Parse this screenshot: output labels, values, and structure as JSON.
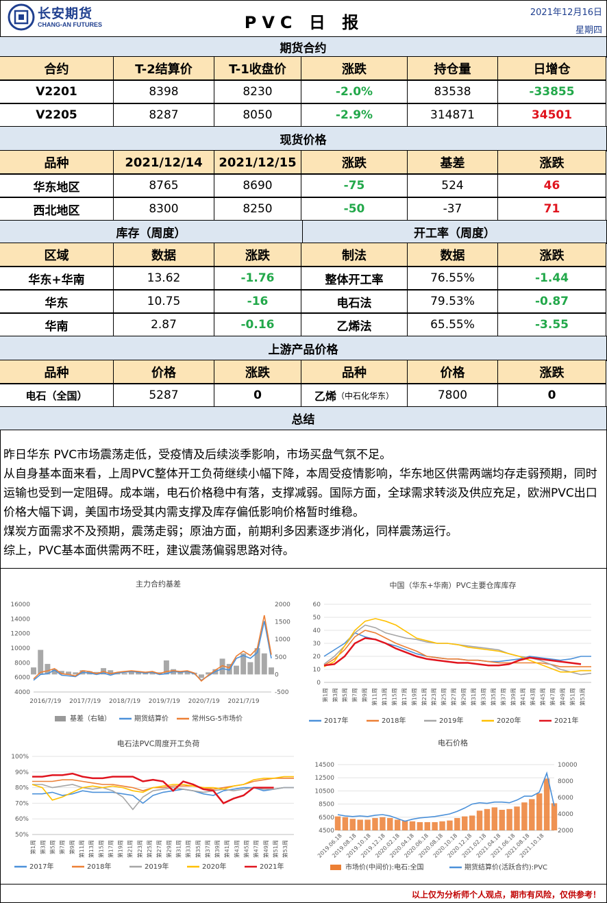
{
  "header": {
    "brand_cn": "长安期货",
    "brand_en": "CHANG-AN FUTURES",
    "title": "PVC 日 报",
    "date": "2021年12月16日",
    "weekday": "星期四"
  },
  "futures": {
    "section": "期货合约",
    "columns": [
      "合约",
      "T-2结算价",
      "T-1收盘价",
      "涨跌",
      "持仓量",
      "日增仓"
    ],
    "rows": [
      [
        "V2201",
        "8398",
        "8230",
        "-2.0%",
        "83538",
        "-33855"
      ],
      [
        "V2205",
        "8287",
        "8050",
        "-2.9%",
        "314871",
        "34501"
      ]
    ]
  },
  "spot": {
    "section": "现货价格",
    "columns": [
      "品种",
      "2021/12/14",
      "2021/12/15",
      "涨跌",
      "基差",
      "涨跌"
    ],
    "rows": [
      [
        "华东地区",
        "8765",
        "8690",
        "-75",
        "524",
        "46"
      ],
      [
        "西北地区",
        "8300",
        "8250",
        "-50",
        "-37",
        "71"
      ]
    ]
  },
  "inventory": {
    "section": "库存（周度）",
    "columns": [
      "区域",
      "数据",
      "涨跌"
    ],
    "rows": [
      [
        "华东+华南",
        "13.62",
        "-1.76"
      ],
      [
        "华东",
        "10.75",
        "-16"
      ],
      [
        "华南",
        "2.87",
        "-0.16"
      ]
    ]
  },
  "operating": {
    "section": "开工率（周度）",
    "columns": [
      "制法",
      "数据",
      "涨跌"
    ],
    "rows": [
      [
        "整体开工率",
        "76.55%",
        "-1.44"
      ],
      [
        "电石法",
        "79.53%",
        "-0.87"
      ],
      [
        "乙烯法",
        "65.55%",
        "-3.55"
      ]
    ]
  },
  "upstream": {
    "section": "上游产品价格",
    "columns": [
      "品种",
      "价格",
      "涨跌",
      "品种",
      "价格",
      "涨跌"
    ],
    "row": {
      "name1": "电石（全国）",
      "price1": "5287",
      "chg1": "0",
      "name2": "乙烯",
      "name2_note": "（中石化华东）",
      "price2": "7800",
      "chg2": "0"
    }
  },
  "summary": {
    "section": "总结",
    "paragraphs": [
      "昨日华东 PVC市场震荡走低，受疫情及后续淡季影响，市场买盘气氛不足。",
      "从自身基本面来看，上周PVC整体开工负荷继续小幅下降，本周受疫情影响，华东地区供需两端均存走弱预期，同时运输也受到一定阻碍。成本端，电石价格稳中有落，支撑减弱。国际方面，全球需求转淡及供应充足，欧洲PVC出口价格大幅下调，美国市场受其内需支撑及库存偏低影响价格暂时维稳。",
      "煤炭方面需求不及预期，震荡走弱；原油方面，前期利多因素逐步消化，同样震荡运行。",
      "综上，PVC基本面供需两不旺，建议震荡偏弱思路对待。"
    ]
  },
  "footer": {
    "disclaimer": "以上仅为分析师个人观点，期市有风险，仅供参考！"
  },
  "chart_data": [
    {
      "type": "line",
      "title": "主力合约基差",
      "x_ticks": [
        "2016/7/19",
        "2017/7/19",
        "2018/7/19",
        "2019/7/19",
        "2020/7/19",
        "2021/7/19"
      ],
      "ylim": [
        4000,
        16000
      ],
      "y_ticks": [
        "4000",
        "6000",
        "8000",
        "10000",
        "12000",
        "14000",
        "16000"
      ],
      "ylim_right": [
        -500,
        2000
      ],
      "y_ticks_right": [
        "-500",
        "0",
        "500",
        "1000",
        "1500",
        "2000"
      ],
      "series": [
        {
          "name": "基差（右轴）",
          "color": "#999999",
          "kind": "area",
          "values": [
            200,
            700,
            300,
            150,
            100,
            80,
            60,
            120,
            90,
            70,
            180,
            120,
            60,
            40,
            100,
            80,
            70,
            50,
            60,
            400,
            150,
            60,
            80,
            50,
            -100,
            60,
            150,
            450,
            300,
            250,
            600,
            350,
            750,
            600,
            200
          ]
        },
        {
          "name": "期货结算价",
          "color": "#4a90d9",
          "values": [
            5600,
            6400,
            6500,
            7000,
            6300,
            6200,
            6100,
            6700,
            6600,
            6400,
            6600,
            6300,
            6600,
            6700,
            6800,
            6700,
            6600,
            6700,
            6400,
            6500,
            6800,
            6700,
            6800,
            6500,
            5600,
            6200,
            6800,
            7200,
            7000,
            8600,
            9000,
            8600,
            9400,
            13700,
            8600
          ]
        },
        {
          "name": "常州SG-5市场价",
          "color": "#ec7f34",
          "values": [
            5800,
            6700,
            6900,
            7200,
            6500,
            6400,
            6200,
            6900,
            6800,
            6500,
            6800,
            6500,
            6700,
            6800,
            6900,
            6800,
            6700,
            6800,
            6500,
            6800,
            6900,
            6800,
            6900,
            6600,
            5500,
            6300,
            7000,
            7600,
            7300,
            8900,
            9600,
            9000,
            10000,
            14500,
            9100
          ]
        }
      ]
    },
    {
      "type": "line",
      "title": "中国（华东+华南）PVC主要仓库库存",
      "x_ticks": [
        "第1周",
        "第3周",
        "第5周",
        "第7周",
        "第9周",
        "第11周",
        "第13周",
        "第15周",
        "第17周",
        "第19周",
        "第21周",
        "第23周",
        "第25周",
        "第27周",
        "第29周",
        "第31周",
        "第33周",
        "第35周",
        "第37周",
        "第39周",
        "第41周",
        "第43周",
        "第45周",
        "第47周",
        "第49周",
        "第51周",
        "第53周"
      ],
      "ylim": [
        0,
        60
      ],
      "y_ticks": [
        "0",
        "10",
        "20",
        "30",
        "40",
        "50",
        "60"
      ],
      "series": [
        {
          "name": "2017年",
          "color": "#4a90d9",
          "values": [
            20,
            25,
            30,
            38,
            35,
            33,
            30,
            28,
            25,
            22,
            20,
            19,
            18,
            18,
            17,
            17,
            16,
            16,
            17,
            18,
            20,
            19,
            18,
            17,
            18,
            20,
            20
          ]
        },
        {
          "name": "2018年",
          "color": "#ec7f34",
          "values": [
            13,
            18,
            25,
            35,
            40,
            38,
            34,
            30,
            27,
            24,
            20,
            19,
            18,
            18,
            17,
            17,
            16,
            15,
            15,
            15,
            15,
            15,
            14,
            12,
            12,
            12,
            12
          ]
        },
        {
          "name": "2019年",
          "color": "#a5a5a5",
          "values": [
            14,
            20,
            28,
            38,
            44,
            42,
            38,
            36,
            34,
            33,
            31,
            30,
            30,
            29,
            28,
            27,
            26,
            25,
            22,
            20,
            19,
            17,
            14,
            10,
            8,
            6,
            7
          ]
        },
        {
          "name": "2020年",
          "color": "#ffc000",
          "values": [
            12,
            16,
            28,
            40,
            47,
            49,
            47,
            44,
            39,
            34,
            32,
            30,
            30,
            29,
            27,
            26,
            25,
            24,
            22,
            20,
            17,
            14,
            11,
            8,
            8,
            9,
            9
          ]
        },
        {
          "name": "2021年",
          "color": "#e0141e",
          "values": [
            13,
            14,
            20,
            30,
            34,
            33,
            30,
            26,
            23,
            20,
            18,
            17,
            16,
            15,
            15,
            14,
            13,
            13,
            14,
            17,
            19,
            18,
            17,
            16,
            15,
            14,
            null
          ]
        }
      ]
    },
    {
      "type": "line",
      "title": "电石法PVC周度开工负荷",
      "x_ticks": [
        "第1周",
        "第3周",
        "第5周",
        "第7周",
        "第9周",
        "第11周",
        "第13周",
        "第15周",
        "第17周",
        "第19周",
        "第21周",
        "第23周",
        "第25周",
        "第27周",
        "第29周",
        "第31周",
        "第33周",
        "第35周",
        "第37周",
        "第39周",
        "第41周",
        "第43周",
        "第45周",
        "第47周",
        "第49周",
        "第51周",
        "第53周"
      ],
      "ylim": [
        50,
        100
      ],
      "y_ticks": [
        "50%",
        "60%",
        "70%",
        "80%",
        "90%",
        "100%"
      ],
      "series": [
        {
          "name": "2017年",
          "color": "#4a90d9",
          "values": [
            76,
            76,
            77,
            75,
            76,
            78,
            77,
            77,
            77,
            76,
            75,
            70,
            75,
            77,
            78,
            79,
            78,
            76,
            75,
            78,
            79,
            80,
            80,
            78,
            79,
            80,
            80
          ]
        },
        {
          "name": "2018年",
          "color": "#ec7f34",
          "values": [
            84,
            84,
            84,
            85,
            85,
            84,
            83,
            82,
            82,
            81,
            80,
            78,
            80,
            80,
            81,
            81,
            81,
            80,
            79,
            80,
            81,
            82,
            84,
            85,
            86,
            86,
            86
          ]
        },
        {
          "name": "2019年",
          "color": "#a5a5a5",
          "values": [
            82,
            82,
            80,
            81,
            82,
            80,
            79,
            80,
            78,
            74,
            66,
            74,
            78,
            79,
            80,
            79,
            78,
            77,
            78,
            79,
            78,
            79,
            80,
            79,
            79,
            80,
            80
          ]
        },
        {
          "name": "2020年",
          "color": "#ffc000",
          "values": [
            82,
            80,
            72,
            74,
            77,
            80,
            81,
            80,
            81,
            80,
            78,
            77,
            80,
            81,
            82,
            82,
            81,
            80,
            80,
            79,
            81,
            82,
            85,
            86,
            86,
            87,
            87
          ]
        },
        {
          "name": "2021年",
          "color": "#e0141e",
          "values": [
            87,
            87,
            88,
            88,
            89,
            87,
            86,
            86,
            87,
            87,
            87,
            84,
            85,
            84,
            78,
            84,
            82,
            79,
            78,
            70,
            73,
            75,
            80,
            80,
            80,
            null,
            null
          ]
        }
      ]
    },
    {
      "type": "area",
      "title": "电石价格",
      "x_ticks": [
        "2019.06.18",
        "2019.08.18",
        "2019.10.18",
        "2019.12.18",
        "2020.02.18",
        "2020.04.18",
        "2020.06.18",
        "2020.08.18",
        "2020.10.18",
        "2020.12.18",
        "2021.02.18",
        "2021.04.18",
        "2021.06.18",
        "2021.08.18",
        "2021.10.18"
      ],
      "ylim": [
        4500,
        14500
      ],
      "y_ticks": [
        "4500",
        "6500",
        "8500",
        "10500",
        "12500",
        "14500"
      ],
      "ylim_right": [
        2000,
        10000
      ],
      "y_ticks_right": [
        "2000",
        "4000",
        "6000",
        "8000",
        "10000"
      ],
      "series": [
        {
          "name": "市场价(中间价):电石:全国",
          "color": "#ec7f34",
          "kind": "area",
          "values": [
            3700,
            3600,
            3400,
            3300,
            3300,
            3500,
            3600,
            3500,
            3300,
            3200,
            3100,
            3000,
            3000,
            3000,
            3100,
            3200,
            3500,
            3700,
            3800,
            4400,
            4600,
            4800,
            4500,
            4600,
            4900,
            5400,
            5800,
            6500,
            8300,
            5300
          ]
        },
        {
          "name": "期货结算价(活跃合约):PVC",
          "color": "#4a90d9",
          "values": [
            6900,
            6700,
            6600,
            6700,
            6600,
            6800,
            6900,
            6700,
            6300,
            5900,
            6200,
            6400,
            6500,
            6600,
            6800,
            7000,
            7400,
            7900,
            8500,
            8700,
            8600,
            8800,
            8800,
            8700,
            9100,
            9700,
            9700,
            10300,
            13200,
            8200
          ]
        }
      ]
    }
  ]
}
